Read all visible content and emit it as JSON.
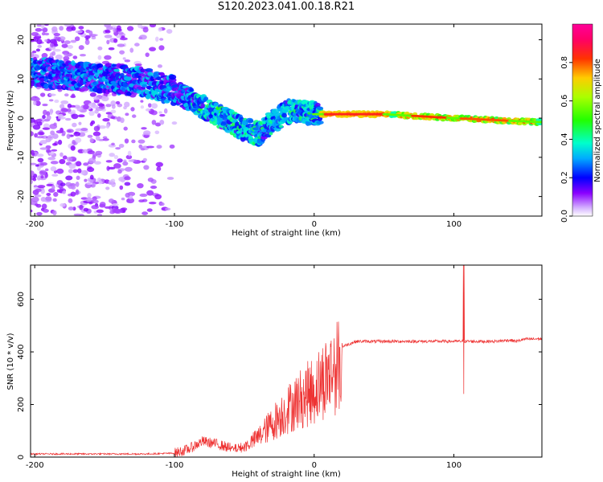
{
  "title": "S120.2023.041.00.18.R21",
  "chart_data": [
    {
      "type": "heatmap",
      "xlabel": "Height of straight line (km)",
      "ylabel": "Frequency (Hz)",
      "xlim": [
        -203,
        163
      ],
      "ylim": [
        -25,
        24
      ],
      "x_ticks": [
        -200,
        -100,
        0,
        100
      ],
      "y_ticks": [
        -20,
        -10,
        0,
        10,
        20
      ],
      "colorbar": {
        "label": "Normalized spectral amplitude",
        "range": [
          0,
          1
        ],
        "ticks": [
          0.0,
          0.2,
          0.4,
          0.6,
          0.8
        ],
        "colormap": "gist_rainbow_r"
      },
      "ridge": {
        "x": [
          -200,
          -180,
          -160,
          -140,
          -120,
          -100,
          -90,
          -80,
          -70,
          -60,
          -50,
          -40,
          -30,
          -20,
          -10,
          0,
          50,
          100,
          160
        ],
        "y": [
          12,
          11,
          10.5,
          10,
          9,
          7,
          5,
          3,
          1,
          -1,
          -3,
          -4,
          -1,
          1.5,
          2,
          1,
          1,
          0,
          -1
        ]
      },
      "grid": false
    },
    {
      "type": "line",
      "xlabel": "Height of straight line (km)",
      "ylabel": "SNR (10 * v/v)",
      "xlim": [
        -203,
        163
      ],
      "ylim": [
        0,
        730
      ],
      "x_ticks": [
        -200,
        -100,
        0,
        100
      ],
      "y_ticks": [
        0,
        200,
        400,
        600
      ],
      "series_color": "#ee3333",
      "envelope": {
        "x": [
          -203,
          -120,
          -100,
          -90,
          -80,
          -70,
          -60,
          -50,
          -40,
          -30,
          -20,
          -10,
          0,
          10,
          20,
          30,
          50,
          80,
          100,
          105,
          108,
          110,
          130,
          140,
          145,
          150,
          163
        ],
        "y": [
          12,
          12,
          15,
          30,
          60,
          50,
          35,
          45,
          90,
          150,
          210,
          260,
          300,
          370,
          420,
          440,
          440,
          440,
          440,
          440,
          440,
          440,
          440,
          445,
          440,
          448,
          450
        ]
      },
      "spikes": [
        {
          "x": 107,
          "y": 730
        },
        {
          "x": 106.5,
          "y": 240
        },
        {
          "x": -10,
          "y": 475
        }
      ],
      "grid": false
    }
  ]
}
